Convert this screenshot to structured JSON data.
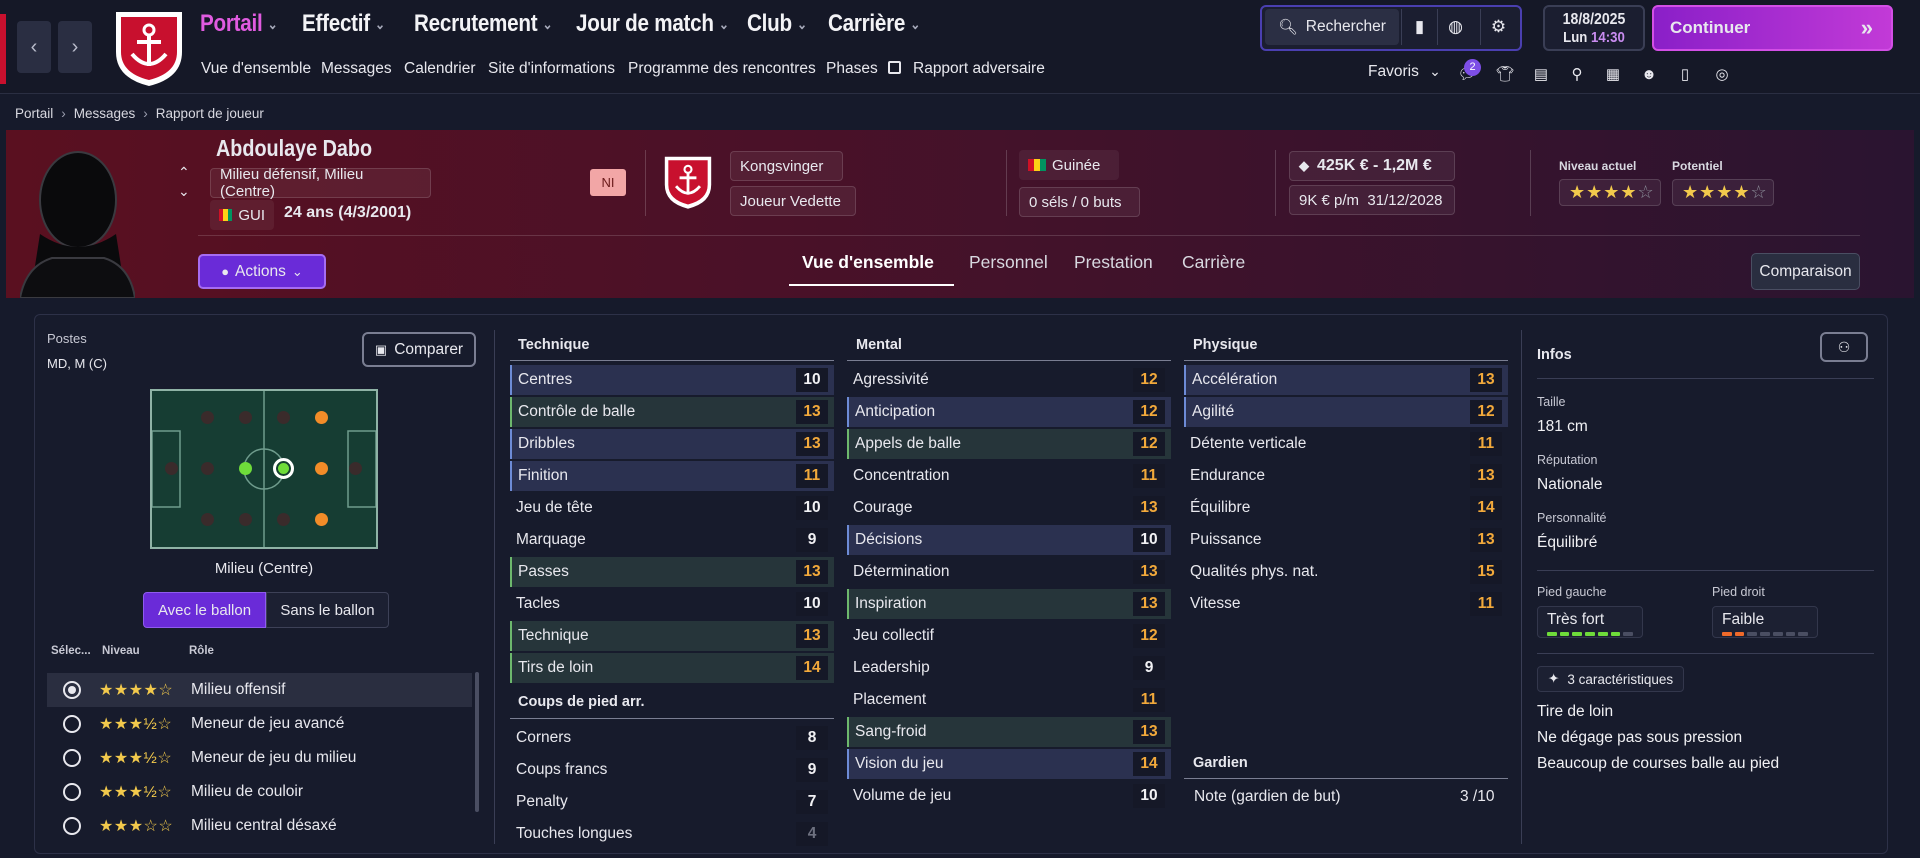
{
  "nav": {
    "menu": [
      "Portail",
      "Effectif",
      "Recrutement",
      "Jour de match",
      "Club",
      "Carrière"
    ],
    "submenu": [
      "Vue d'ensemble",
      "Messages",
      "Calendrier",
      "Site d'informations",
      "Programme des rencontres",
      "Phases",
      "Rapport adversaire"
    ],
    "search_label": "Rechercher",
    "date": "18/8/2025",
    "day": "Lun",
    "time": "14:30",
    "continue_label": "Continuer",
    "favoris_label": "Favoris",
    "badge_count": "2"
  },
  "breadcrumb": [
    "Portail",
    "Messages",
    "Rapport de joueur"
  ],
  "player": {
    "name": "Abdoulaye Dabo",
    "positions_long": "Milieu défensif, Milieu (Centre)",
    "nationality_code": "GUI",
    "age": "24 ans (4/3/2001)",
    "ni": "NI",
    "club": "Kongsvinger",
    "status": "Joueur Vedette",
    "nation": "Guinée",
    "caps": "0 séls / 0 buts",
    "value": "425K € - 1,2M €",
    "wage": "9K € p/m",
    "contract_end": "31/12/2028",
    "current_label": "Niveau actuel",
    "potential_label": "Potentiel",
    "current_stars": 4,
    "potential_stars": 4
  },
  "header_actions": {
    "actions_label": "Actions",
    "compare_label": "Comparaison"
  },
  "profile_tabs": [
    "Vue d'ensemble",
    "Personnel",
    "Prestation",
    "Carrière"
  ],
  "left": {
    "postes_label": "Postes",
    "postes_value": "MD, M (C)",
    "comparer_label": "Comparer",
    "pitch_caption": "Milieu (Centre)",
    "with_ball": "Avec le ballon",
    "without_ball": "Sans le ballon",
    "role_headers": [
      "Sélec...",
      "Niveau",
      "Rôle"
    ],
    "roles": [
      {
        "name": "Milieu offensif",
        "stars": "★★★★☆",
        "selected": true
      },
      {
        "name": "Meneur de jeu avancé",
        "stars": "★★★½☆",
        "selected": false
      },
      {
        "name": "Meneur de jeu du milieu",
        "stars": "★★★½☆",
        "selected": false
      },
      {
        "name": "Milieu de couloir",
        "stars": "★★★½☆",
        "selected": false
      },
      {
        "name": "Milieu central désaxé",
        "stars": "★★★☆☆",
        "selected": false
      }
    ]
  },
  "attributes": {
    "technique_title": "Technique",
    "technique": [
      {
        "n": "Centres",
        "v": "10",
        "c": "w",
        "h": "h"
      },
      {
        "n": "Contrôle de balle",
        "v": "13",
        "c": "o",
        "h": "g"
      },
      {
        "n": "Dribbles",
        "v": "13",
        "c": "o",
        "h": "h"
      },
      {
        "n": "Finition",
        "v": "11",
        "c": "o",
        "h": "h"
      },
      {
        "n": "Jeu de tête",
        "v": "10",
        "c": "w",
        "h": ""
      },
      {
        "n": "Marquage",
        "v": "9",
        "c": "w",
        "h": ""
      },
      {
        "n": "Passes",
        "v": "13",
        "c": "o",
        "h": "g"
      },
      {
        "n": "Tacles",
        "v": "10",
        "c": "w",
        "h": ""
      },
      {
        "n": "Technique",
        "v": "13",
        "c": "o",
        "h": "g"
      },
      {
        "n": "Tirs de loin",
        "v": "14",
        "c": "o",
        "h": "g"
      }
    ],
    "setpieces_title": "Coups de pied arr.",
    "setpieces": [
      {
        "n": "Corners",
        "v": "8",
        "c": "w",
        "h": ""
      },
      {
        "n": "Coups francs",
        "v": "9",
        "c": "w",
        "h": ""
      },
      {
        "n": "Penalty",
        "v": "7",
        "c": "w",
        "h": ""
      },
      {
        "n": "Touches longues",
        "v": "4",
        "c": "gr",
        "h": ""
      }
    ],
    "mental_title": "Mental",
    "mental": [
      {
        "n": "Agressivité",
        "v": "12",
        "c": "o",
        "h": ""
      },
      {
        "n": "Anticipation",
        "v": "12",
        "c": "o",
        "h": "h"
      },
      {
        "n": "Appels de balle",
        "v": "12",
        "c": "o",
        "h": "g"
      },
      {
        "n": "Concentration",
        "v": "11",
        "c": "o",
        "h": ""
      },
      {
        "n": "Courage",
        "v": "13",
        "c": "o",
        "h": ""
      },
      {
        "n": "Décisions",
        "v": "10",
        "c": "w",
        "h": "h"
      },
      {
        "n": "Détermination",
        "v": "13",
        "c": "o",
        "h": ""
      },
      {
        "n": "Inspiration",
        "v": "13",
        "c": "o",
        "h": "g"
      },
      {
        "n": "Jeu collectif",
        "v": "12",
        "c": "o",
        "h": ""
      },
      {
        "n": "Leadership",
        "v": "9",
        "c": "w",
        "h": ""
      },
      {
        "n": "Placement",
        "v": "11",
        "c": "o",
        "h": ""
      },
      {
        "n": "Sang-froid",
        "v": "13",
        "c": "o",
        "h": "g"
      },
      {
        "n": "Vision du jeu",
        "v": "14",
        "c": "o",
        "h": "h"
      },
      {
        "n": "Volume de jeu",
        "v": "10",
        "c": "w",
        "h": ""
      }
    ],
    "physique_title": "Physique",
    "physique": [
      {
        "n": "Accélération",
        "v": "13",
        "c": "o",
        "h": "h"
      },
      {
        "n": "Agilité",
        "v": "12",
        "c": "o",
        "h": "h"
      },
      {
        "n": "Détente verticale",
        "v": "11",
        "c": "o",
        "h": ""
      },
      {
        "n": "Endurance",
        "v": "13",
        "c": "o",
        "h": ""
      },
      {
        "n": "Équilibre",
        "v": "14",
        "c": "o",
        "h": ""
      },
      {
        "n": "Puissance",
        "v": "13",
        "c": "o",
        "h": ""
      },
      {
        "n": "Qualités phys. nat.",
        "v": "15",
        "c": "o",
        "h": ""
      },
      {
        "n": "Vitesse",
        "v": "11",
        "c": "o",
        "h": ""
      }
    ],
    "gk_title": "Gardien",
    "gk_label": "Note (gardien de but)",
    "gk_value": "3 /10"
  },
  "infos": {
    "title": "Infos",
    "height_label": "Taille",
    "height": "181 cm",
    "reputation_label": "Réputation",
    "reputation": "Nationale",
    "personality_label": "Personnalité",
    "personality": "Équilibré",
    "left_foot_label": "Pied gauche",
    "left_foot": "Très fort",
    "left_foot_level": 6,
    "right_foot_label": "Pied droit",
    "right_foot": "Faible",
    "right_foot_level": 2,
    "traits_label": "3 caractéristiques",
    "traits": [
      "Tire de loin",
      "Ne dégage pas sous pression",
      "Beaucoup de courses balle au pied"
    ]
  },
  "colors": {
    "accent": "#6a2bd8",
    "brand_red": "#c8102e",
    "orange": "#f2a93b",
    "green": "#6fdc3a"
  }
}
